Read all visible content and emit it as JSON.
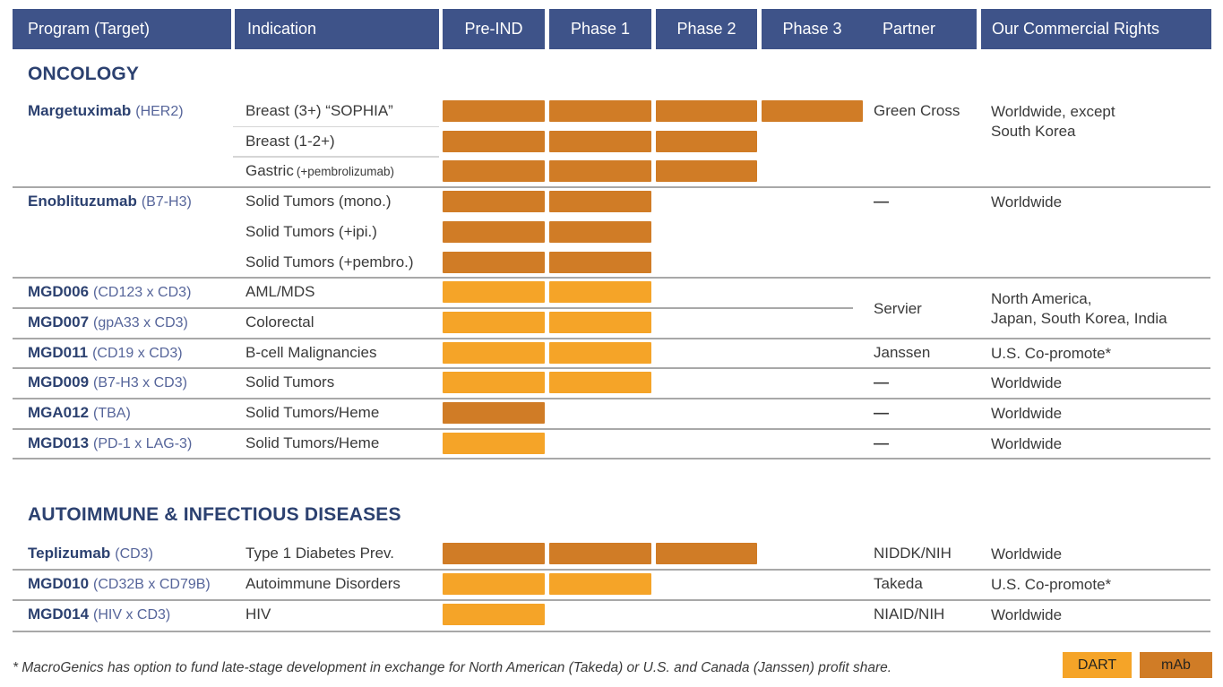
{
  "header": {
    "columns": [
      "Program (Target)",
      "Indication",
      "Pre-IND",
      "Phase 1",
      "Phase 2",
      "Phase 3",
      "Partner",
      "Our Commercial Rights"
    ]
  },
  "legend": {
    "items": [
      {
        "label": "DART",
        "color": "#F5A428"
      },
      {
        "label": "mAb",
        "color": "#D07C26"
      }
    ]
  },
  "footnote": "* MacroGenics has option to fund late-stage development in exchange for North American (Takeda) or U.S. and Canada (Janssen) profit share.",
  "colors": {
    "header_bg": "#3E5389",
    "section_title": "#2C4170",
    "program": "#2C4170",
    "target": "#56659A",
    "body_text": "#3A3A3A",
    "dart": "#F5A428",
    "mab": "#D07C26",
    "divider": "#A8A8A8",
    "sub_divider": "#D6D6D6"
  },
  "chart_data": {
    "type": "table",
    "phase_scale": [
      "Pre-IND",
      "Phase 1",
      "Phase 2",
      "Phase 3"
    ],
    "legend_types": [
      "DART",
      "mAb"
    ],
    "sections": [
      {
        "title": "ONCOLOGY",
        "groups": [
          {
            "partner": "Green Cross",
            "rights": [
              "Worldwide, except",
              "South Korea"
            ],
            "partner_align": "first",
            "programs": [
              {
                "program": "Margetuximab",
                "target": "(HER2)",
                "sub_dividers": true,
                "rows": [
                  {
                    "indication": "Breast (3+) “SOPHIA”",
                    "phase_span": 4,
                    "molecule_type": "mAb"
                  },
                  {
                    "indication": "Breast (1-2+)",
                    "phase_span": 3,
                    "molecule_type": "mAb"
                  },
                  {
                    "indication": "Gastric",
                    "indication_note": "(+pembrolizumab)",
                    "phase_span": 3,
                    "molecule_type": "mAb"
                  }
                ]
              }
            ]
          },
          {
            "partner": "—",
            "rights": [
              "Worldwide"
            ],
            "partner_align": "first",
            "programs": [
              {
                "program": "Enoblituzumab",
                "target": "(B7-H3)",
                "sub_dividers": false,
                "rows": [
                  {
                    "indication": "Solid Tumors (mono.)",
                    "phase_span": 2,
                    "molecule_type": "mAb"
                  },
                  {
                    "indication": "Solid Tumors (+ipi.)",
                    "phase_span": 2,
                    "molecule_type": "mAb"
                  },
                  {
                    "indication": "Solid Tumors (+pembro.)",
                    "phase_span": 2,
                    "molecule_type": "mAb"
                  }
                ]
              }
            ]
          },
          {
            "partner": "Servier",
            "rights": [
              "North America,",
              "Japan, South Korea, India"
            ],
            "partner_align": "center",
            "programs": [
              {
                "program": "MGD006",
                "target": "(CD123 x CD3)",
                "sub_dividers": false,
                "rows": [
                  {
                    "indication": "AML/MDS",
                    "phase_span": 2,
                    "molecule_type": "DART"
                  }
                ]
              },
              {
                "program": "MGD007",
                "target": "(gpA33 x CD3)",
                "sub_dividers": false,
                "rows": [
                  {
                    "indication": "Colorectal",
                    "phase_span": 2,
                    "molecule_type": "DART"
                  }
                ]
              }
            ]
          },
          {
            "partner": "Janssen",
            "rights": [
              "U.S. Co-promote*"
            ],
            "partner_align": "first",
            "programs": [
              {
                "program": "MGD011",
                "target": "(CD19 x CD3)",
                "sub_dividers": false,
                "rows": [
                  {
                    "indication": "B-cell Malignancies",
                    "phase_span": 2,
                    "molecule_type": "DART"
                  }
                ]
              }
            ]
          },
          {
            "partner": "—",
            "rights": [
              "Worldwide"
            ],
            "partner_align": "first",
            "programs": [
              {
                "program": "MGD009",
                "target": "(B7-H3 x CD3)",
                "sub_dividers": false,
                "rows": [
                  {
                    "indication": "Solid Tumors",
                    "phase_span": 2,
                    "molecule_type": "DART"
                  }
                ]
              }
            ]
          },
          {
            "partner": "—",
            "rights": [
              "Worldwide"
            ],
            "partner_align": "first",
            "programs": [
              {
                "program": "MGA012",
                "target": "(TBA)",
                "sub_dividers": false,
                "rows": [
                  {
                    "indication": "Solid Tumors/Heme",
                    "phase_span": 1,
                    "molecule_type": "mAb"
                  }
                ]
              }
            ]
          },
          {
            "partner": "—",
            "rights": [
              "Worldwide"
            ],
            "partner_align": "first",
            "programs": [
              {
                "program": "MGD013",
                "target": "(PD-1 x LAG-3)",
                "sub_dividers": false,
                "rows": [
                  {
                    "indication": "Solid Tumors/Heme",
                    "phase_span": 1,
                    "molecule_type": "DART"
                  }
                ]
              }
            ]
          }
        ]
      },
      {
        "title": "AUTOIMMUNE & INFECTIOUS DISEASES",
        "groups": [
          {
            "partner": "NIDDK/NIH",
            "rights": [
              "Worldwide"
            ],
            "partner_align": "first",
            "programs": [
              {
                "program": "Teplizumab",
                "target": "(CD3)",
                "sub_dividers": false,
                "rows": [
                  {
                    "indication": "Type 1 Diabetes Prev.",
                    "phase_span": 3,
                    "molecule_type": "mAb"
                  }
                ]
              }
            ]
          },
          {
            "partner": "Takeda",
            "rights": [
              "U.S. Co-promote*"
            ],
            "partner_align": "first",
            "programs": [
              {
                "program": "MGD010",
                "target": "(CD32B x CD79B)",
                "sub_dividers": false,
                "rows": [
                  {
                    "indication": "Autoimmune Disorders",
                    "phase_span": 2,
                    "molecule_type": "DART"
                  }
                ]
              }
            ]
          },
          {
            "partner": "NIAID/NIH",
            "rights": [
              "Worldwide"
            ],
            "partner_align": "first",
            "programs": [
              {
                "program": "MGD014",
                "target": "(HIV x CD3)",
                "sub_dividers": false,
                "rows": [
                  {
                    "indication": "HIV",
                    "phase_span": 1,
                    "molecule_type": "DART"
                  }
                ]
              }
            ]
          }
        ]
      }
    ]
  }
}
